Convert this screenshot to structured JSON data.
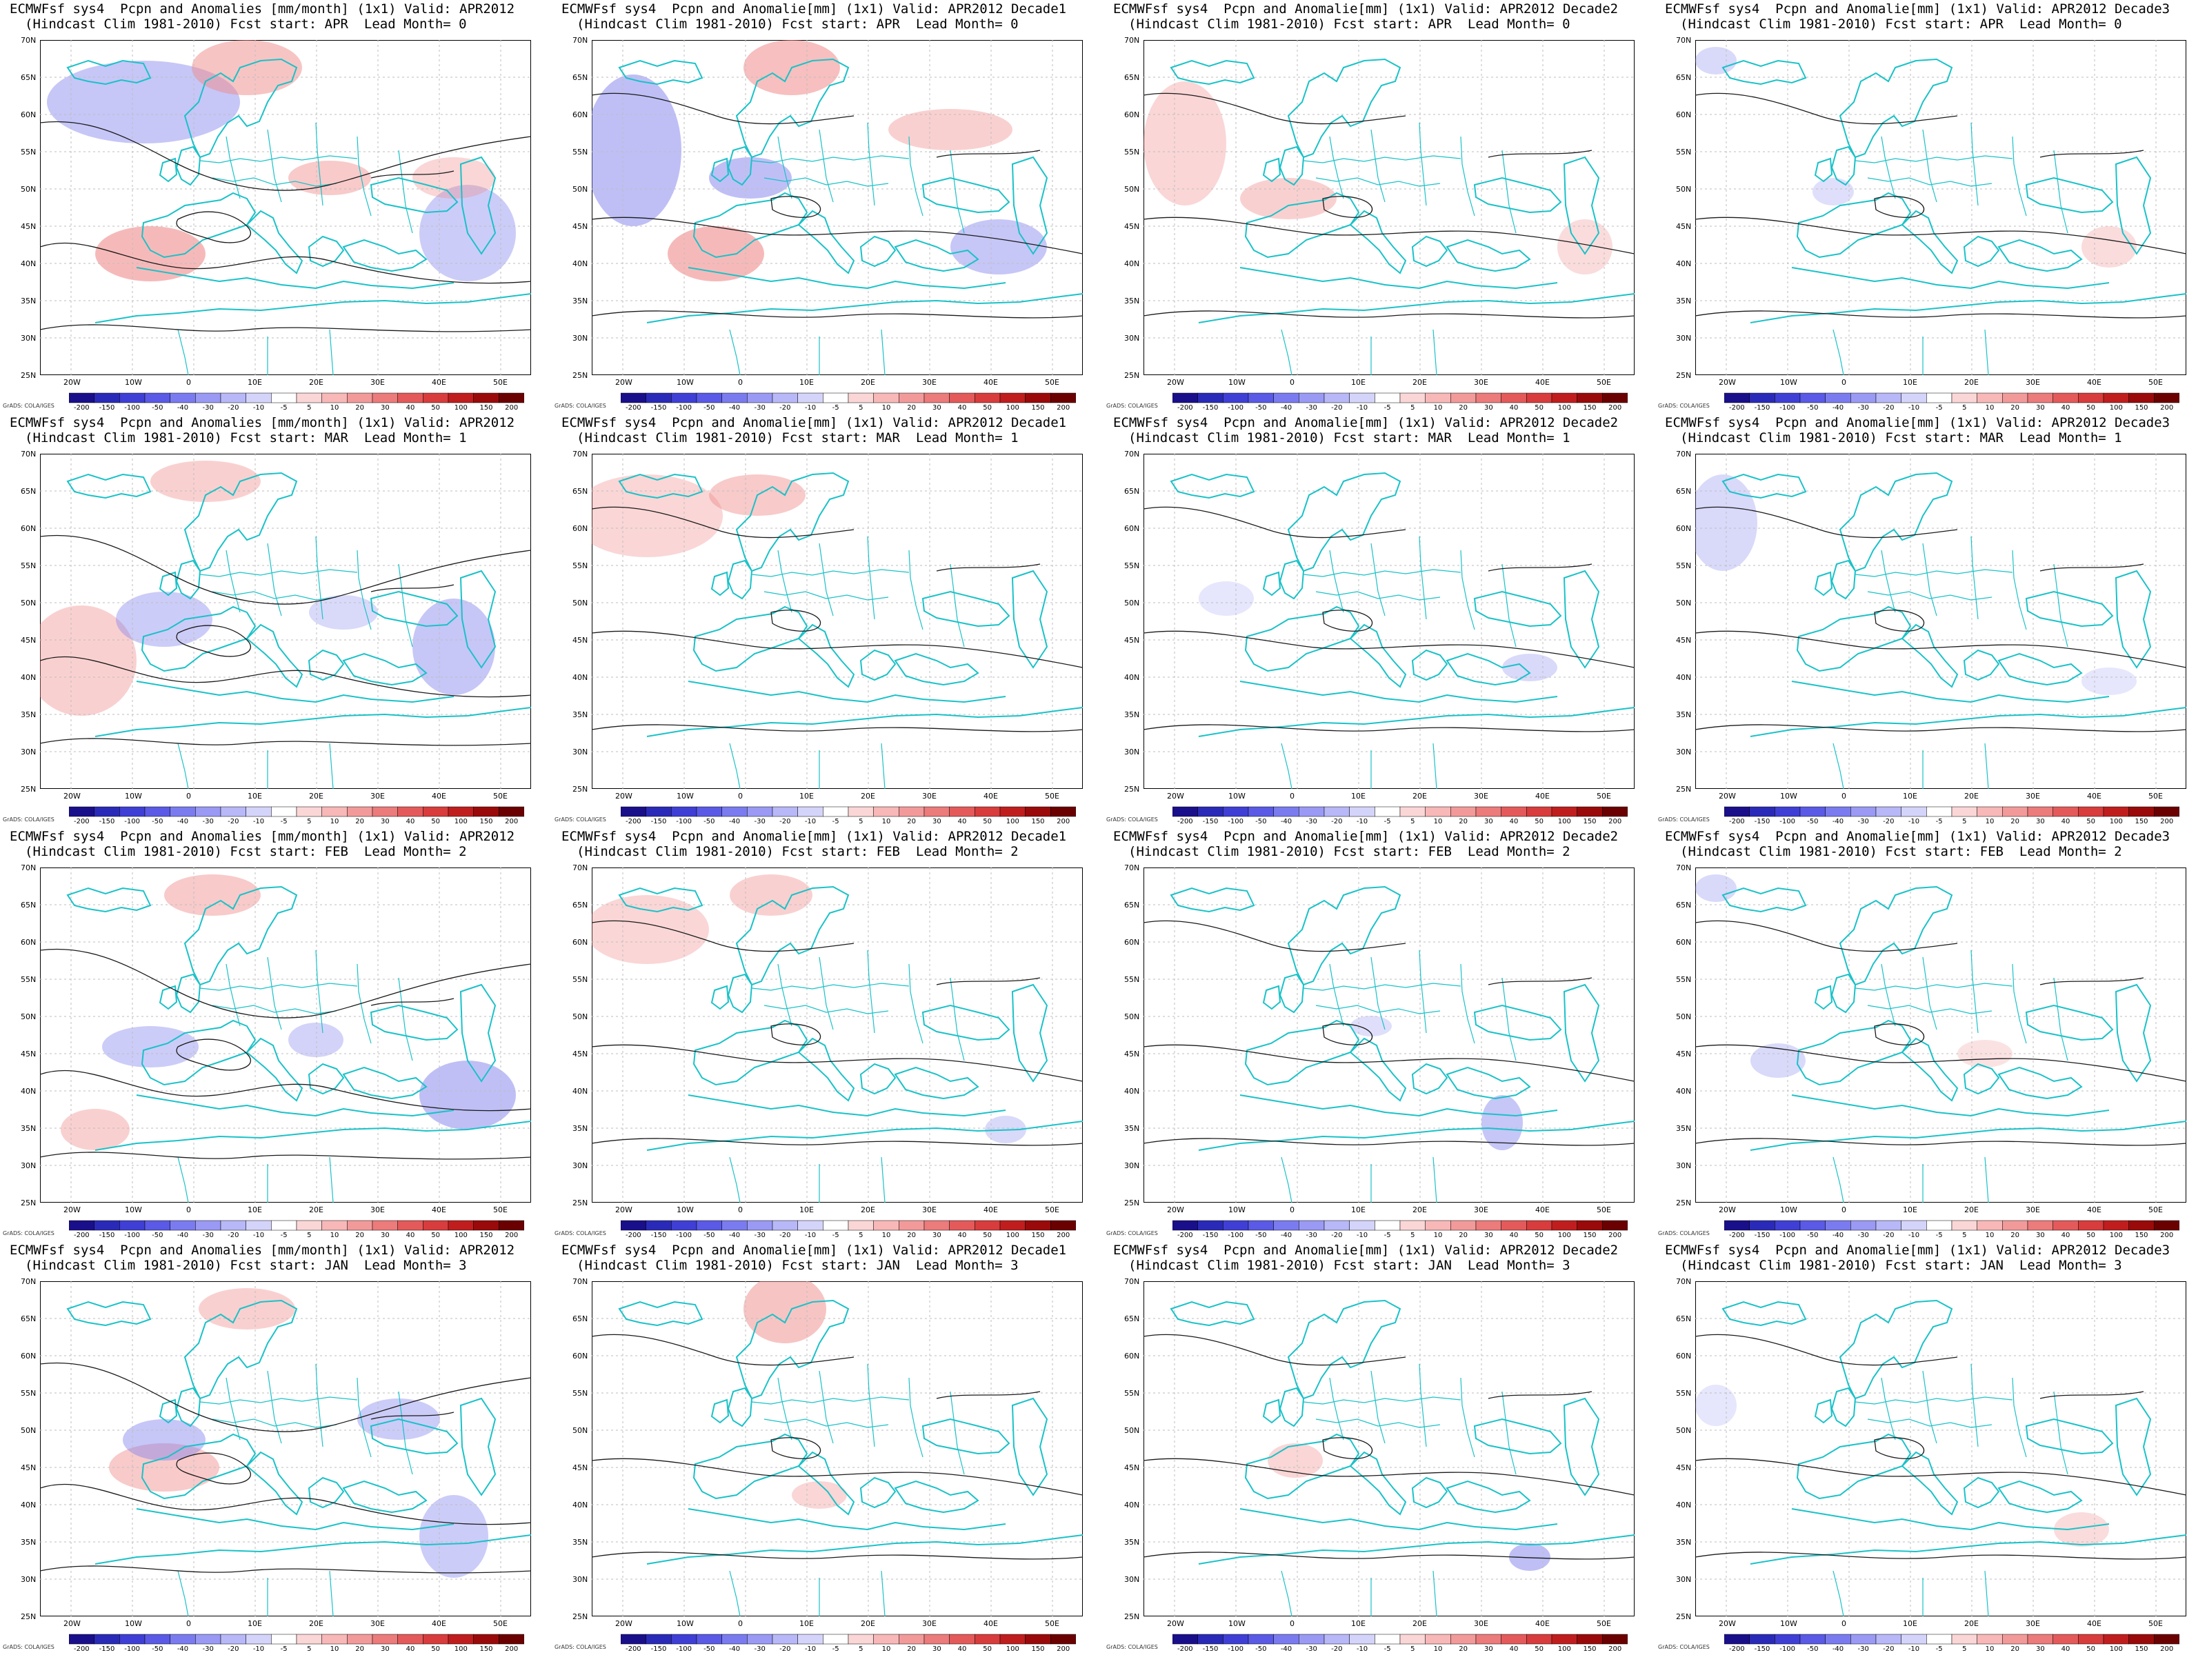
{
  "panels": [
    {
      "line1": "ECMWFsf sys4  Pcpn and Anomalies [mm/month] (1x1) Valid: APR2012",
      "line2": "(Hindcast Clim 1981-2010) Fcst start: APR  Lead Month= 0"
    },
    {
      "line1": "ECMWFsf sys4  Pcpn and Anomalie[mm] (1x1) Valid: APR2012 Decade1",
      "line2": "(Hindcast Clim 1981-2010) Fcst start: APR  Lead Month= 0"
    },
    {
      "line1": "ECMWFsf sys4  Pcpn and Anomalie[mm] (1x1) Valid: APR2012 Decade2",
      "line2": "(Hindcast Clim 1981-2010) Fcst start: APR  Lead Month= 0"
    },
    {
      "line1": "ECMWFsf sys4  Pcpn and Anomalie[mm] (1x1) Valid: APR2012 Decade3",
      "line2": "(Hindcast Clim 1981-2010) Fcst start: APR  Lead Month= 0"
    },
    {
      "line1": "ECMWFsf sys4  Pcpn and Anomalies [mm/month] (1x1) Valid: APR2012",
      "line2": "(Hindcast Clim 1981-2010) Fcst start: MAR  Lead Month= 1"
    },
    {
      "line1": "ECMWFsf sys4  Pcpn and Anomalie[mm] (1x1) Valid: APR2012 Decade1",
      "line2": "(Hindcast Clim 1981-2010) Fcst start: MAR  Lead Month= 1"
    },
    {
      "line1": "ECMWFsf sys4  Pcpn and Anomalie[mm] (1x1) Valid: APR2012 Decade2",
      "line2": "(Hindcast Clim 1981-2010) Fcst start: MAR  Lead Month= 1"
    },
    {
      "line1": "ECMWFsf sys4  Pcpn and Anomalie[mm] (1x1) Valid: APR2012 Decade3",
      "line2": "(Hindcast Clim 1981-2010) Fcst start: MAR  Lead Month= 1"
    },
    {
      "line1": "ECMWFsf sys4  Pcpn and Anomalies [mm/month] (1x1) Valid: APR2012",
      "line2": "(Hindcast Clim 1981-2010) Fcst start: FEB  Lead Month= 2"
    },
    {
      "line1": "ECMWFsf sys4  Pcpn and Anomalie[mm] (1x1) Valid: APR2012 Decade1",
      "line2": "(Hindcast Clim 1981-2010) Fcst start: FEB  Lead Month= 2"
    },
    {
      "line1": "ECMWFsf sys4  Pcpn and Anomalie[mm] (1x1) Valid: APR2012 Decade2",
      "line2": "(Hindcast Clim 1981-2010) Fcst start: FEB  Lead Month= 2"
    },
    {
      "line1": "ECMWFsf sys4  Pcpn and Anomalie[mm] (1x1) Valid: APR2012 Decade3",
      "line2": "(Hindcast Clim 1981-2010) Fcst start: FEB  Lead Month= 2"
    },
    {
      "line1": "ECMWFsf sys4  Pcpn and Anomalies [mm/month] (1x1) Valid: APR2012",
      "line2": "(Hindcast Clim 1981-2010) Fcst start: JAN  Lead Month= 3"
    },
    {
      "line1": "ECMWFsf sys4  Pcpn and Anomalie[mm] (1x1) Valid: APR2012 Decade1",
      "line2": "(Hindcast Clim 1981-2010) Fcst start: JAN  Lead Month= 3"
    },
    {
      "line1": "ECMWFsf sys4  Pcpn and Anomalie[mm] (1x1) Valid: APR2012 Decade2",
      "line2": "(Hindcast Clim 1981-2010) Fcst start: JAN  Lead Month= 3"
    },
    {
      "line1": "ECMWFsf sys4  Pcpn and Anomalie[mm] (1x1) Valid: APR2012 Decade3",
      "line2": "(Hindcast Clim 1981-2010) Fcst start: JAN  Lead Month= 3"
    }
  ],
  "lat_labels": [
    "70N",
    "65N",
    "60N",
    "55N",
    "50N",
    "45N",
    "40N",
    "35N",
    "30N",
    "25N"
  ],
  "lon_labels": [
    "20W",
    "10W",
    "0",
    "10E",
    "20E",
    "30E",
    "40E",
    "50E"
  ],
  "colorbar": {
    "labels": [
      "-200",
      "-150",
      "-100",
      "-50",
      "-40",
      "-30",
      "-20",
      "-10",
      "-5",
      "5",
      "10",
      "20",
      "30",
      "40",
      "50",
      "100",
      "150",
      "200"
    ],
    "colors": [
      "#1a0f8a",
      "#2a2ab8",
      "#3f3fd6",
      "#5a5ae6",
      "#7b7bf0",
      "#9a9af5",
      "#b8b8f8",
      "#d4d4fb",
      "#ffffff",
      "#fbd6d6",
      "#f8b8b8",
      "#f29a9a",
      "#ec7b7b",
      "#e45a5a",
      "#d83c3c",
      "#c01e1e",
      "#9a0a0a",
      "#6b0000"
    ]
  },
  "credit": "GrADS: COLA/IGES",
  "colors": {
    "coast": "#19c2c8",
    "contour": "#1a1a1a",
    "grid": "#bdbdbd",
    "warm": "#f08a8a",
    "cool": "#8080ee"
  }
}
